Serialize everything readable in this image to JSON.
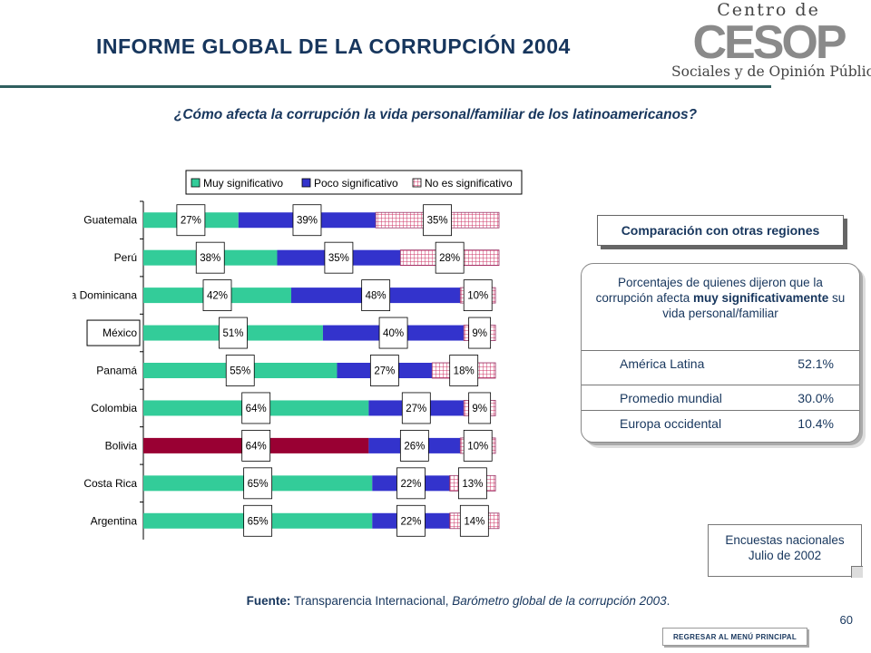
{
  "header": {
    "title": "INFORME GLOBAL DE LA CORRUPCIÓN 2004",
    "subtitle": "¿Cómo afecta la corrupción la vida personal/familiar de los latinoamericanos?"
  },
  "logo": {
    "top_text": "Centro de Estudios",
    "mark_text": "CESOP",
    "bottom_text": "Sociales y de Opinión Pública"
  },
  "chart_data": {
    "type": "bar",
    "orientation": "horizontal",
    "stacked": true,
    "categories": [
      "Guatemala",
      "Perú",
      "República Dominicana",
      "México",
      "Panamá",
      "Colombia",
      "Bolivia",
      "Costa Rica",
      "Argentina"
    ],
    "series": [
      {
        "name": "Muy significativo",
        "values": [
          27,
          38,
          42,
          51,
          55,
          64,
          64,
          65,
          65
        ],
        "color": "#33cc99"
      },
      {
        "name": "Poco significativo",
        "values": [
          39,
          35,
          48,
          40,
          27,
          27,
          26,
          22,
          22
        ],
        "color": "#3333cc"
      },
      {
        "name": "No es significativo",
        "values": [
          35,
          28,
          10,
          9,
          18,
          9,
          10,
          13,
          14
        ],
        "color": "#cc6699"
      }
    ],
    "data_labels": [
      [
        "27%",
        "39%",
        "35%"
      ],
      [
        "38%",
        "35%",
        "28%"
      ],
      [
        "42%",
        "48%",
        "10%"
      ],
      [
        "51%",
        "40%",
        "9%"
      ],
      [
        "55%",
        "27%",
        "18%"
      ],
      [
        "64%",
        "27%",
        "9%"
      ],
      [
        "64%",
        "26%",
        "10%"
      ],
      [
        "65%",
        "22%",
        "13%"
      ],
      [
        "65%",
        "22%",
        "14%"
      ]
    ],
    "highlight_bar": {
      "category": "Bolivia",
      "color": "#990033"
    },
    "boxed_category": "México",
    "legend_position": "top",
    "xlim": [
      0,
      101
    ],
    "grid": false
  },
  "comparison": {
    "title": "Comparación con otras regiones",
    "desc_before": "Porcentajes de quienes dijeron que la corrupción afecta ",
    "desc_bold": "muy significativamente",
    "desc_after": " su vida personal/familiar",
    "rows": [
      {
        "label": "América Latina",
        "value": "52.1%"
      },
      {
        "label": "Promedio mundial",
        "value": "30.0%"
      },
      {
        "label": "Europa occidental",
        "value": "10.4%"
      }
    ]
  },
  "survey_note": {
    "line1": "Encuestas nacionales",
    "line2": "Julio de 2002"
  },
  "source": {
    "label": "Fuente:",
    "text": " Transparencia Internacional, ",
    "italic": "Barómetro global de la corrupción 2003",
    "end": "."
  },
  "page_number": "60",
  "back_button": "REGRESAR AL MENÚ PRINCIPAL",
  "colors": {
    "title": "#17365d",
    "rule": "#2f5f5f"
  }
}
